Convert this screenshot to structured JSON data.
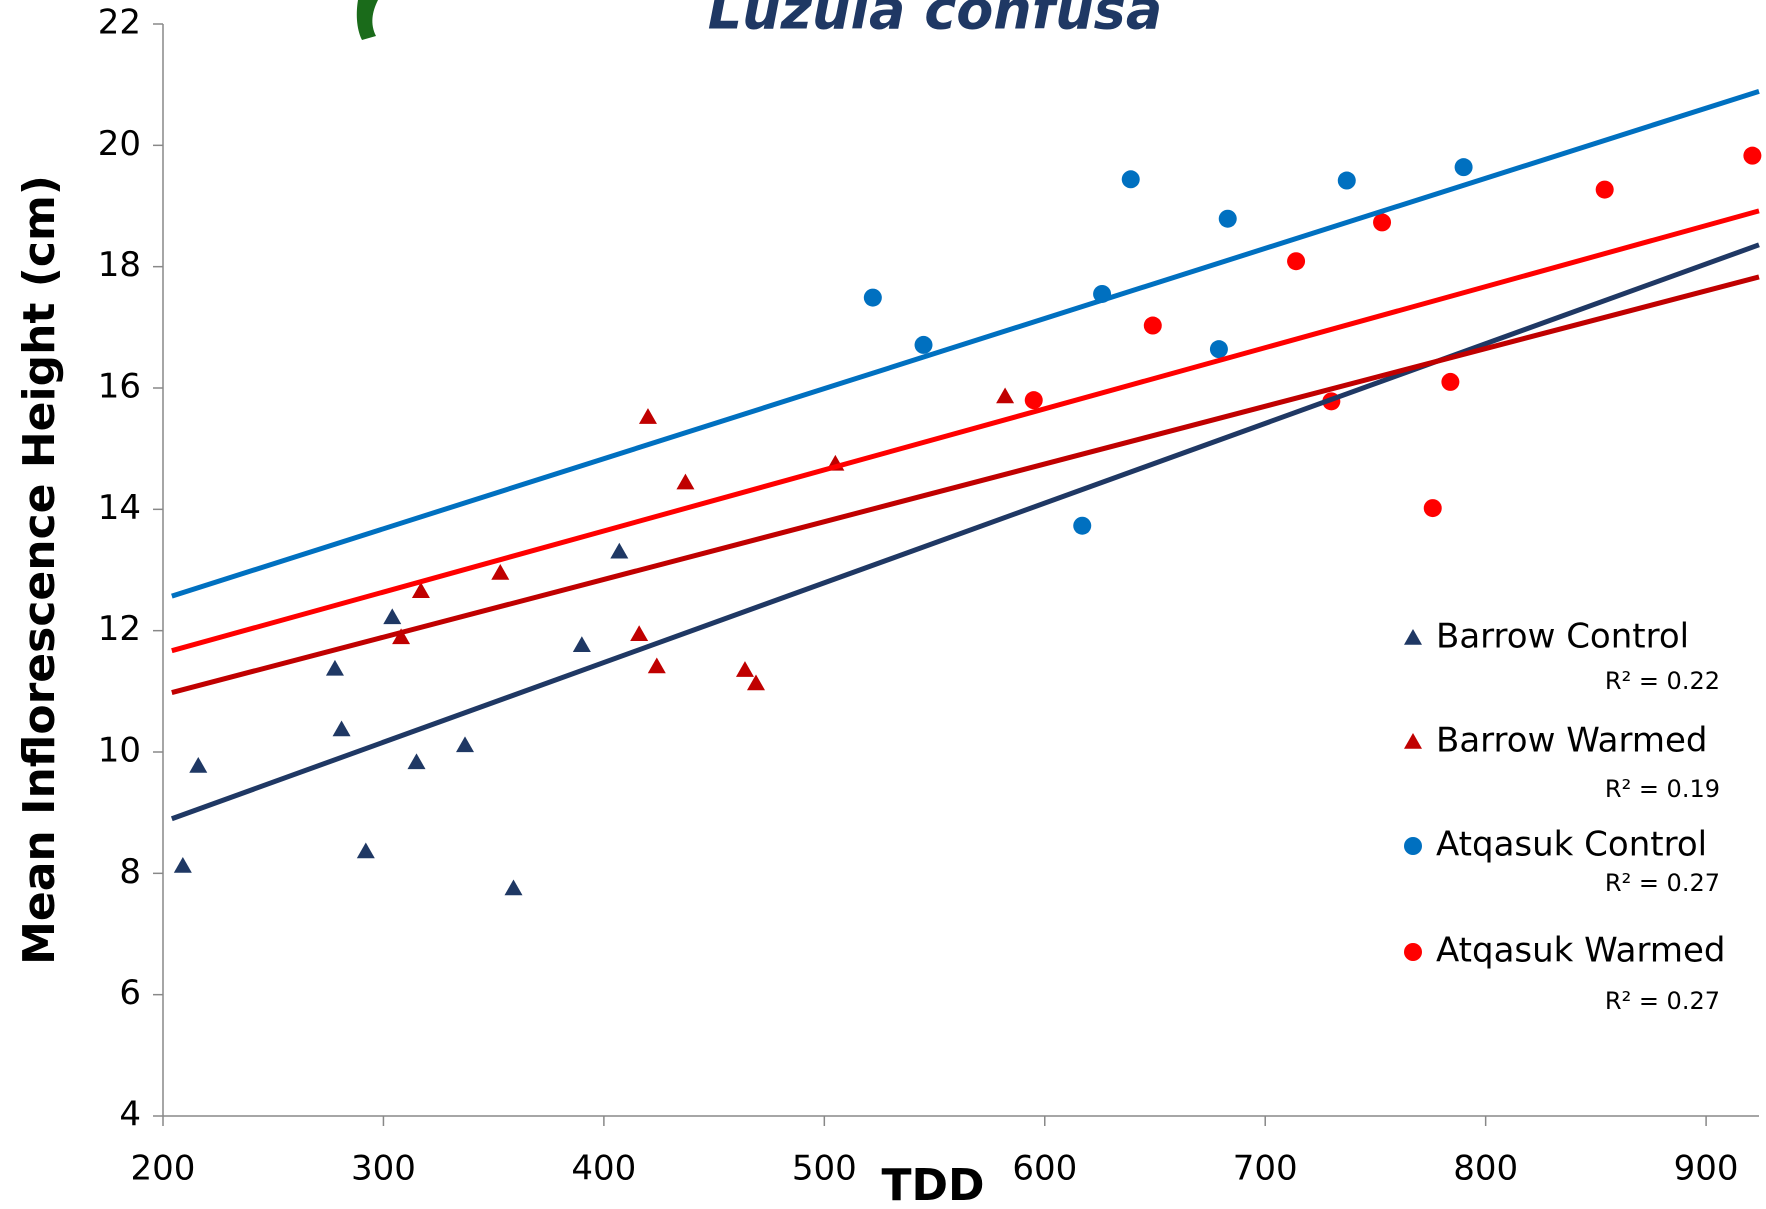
{
  "chart_data": {
    "type": "scatter",
    "title": "Luzula confusa",
    "x_label": "TDD",
    "y_label": "Mean Inflorescence Height (cm)",
    "xlim": [
      200,
      924
    ],
    "xticks": [
      200,
      300,
      400,
      500,
      600,
      700,
      800,
      900
    ],
    "ylim": [
      4,
      22
    ],
    "yticks": [
      4,
      6,
      8,
      10,
      12,
      14,
      16,
      18,
      20,
      22
    ],
    "series": [
      {
        "name": "Barrow Control",
        "color": "#1f3864",
        "marker": "triangle",
        "r2": "R² = 0.22",
        "x": [
          209,
          216,
          278,
          281,
          292,
          304,
          315,
          337,
          359,
          390,
          407
        ],
        "values": [
          8.12,
          9.77,
          11.37,
          10.37,
          8.36,
          12.22,
          9.83,
          10.11,
          7.75,
          11.76,
          13.3
        ],
        "trend": {
          "x": [
            204,
            924
          ],
          "y": [
            8.9,
            18.36
          ]
        }
      },
      {
        "name": "Barrow Warmed",
        "color": "#c00000",
        "marker": "triangle",
        "r2": "R² = 0.19",
        "x": [
          308,
          317,
          353,
          416,
          420,
          424,
          437,
          464,
          469,
          505,
          582
        ],
        "values": [
          11.89,
          12.65,
          12.95,
          11.94,
          15.52,
          11.41,
          14.44,
          11.35,
          11.13,
          14.75,
          15.86
        ],
        "trend": {
          "x": [
            204,
            924
          ],
          "y": [
            10.98,
            17.83
          ]
        }
      },
      {
        "name": "Atqasuk Control",
        "color": "#0070c0",
        "marker": "circle",
        "r2": "R² = 0.27",
        "x": [
          522,
          545,
          617,
          626,
          639,
          679,
          683,
          737,
          790
        ],
        "values": [
          17.49,
          16.71,
          13.73,
          17.55,
          19.44,
          16.64,
          18.79,
          19.42,
          19.64
        ],
        "trend": {
          "x": [
            204,
            924
          ],
          "y": [
            12.57,
            20.89
          ]
        }
      },
      {
        "name": "Atqasuk Warmed",
        "color": "#ff0000",
        "marker": "circle",
        "r2": "R² = 0.27",
        "x": [
          595,
          649,
          714,
          730,
          753,
          776,
          784,
          854,
          921
        ],
        "values": [
          15.8,
          17.03,
          18.09,
          15.78,
          18.73,
          14.02,
          16.1,
          19.27,
          19.83
        ],
        "trend": {
          "x": [
            204,
            924
          ],
          "y": [
            11.67,
            18.92
          ]
        }
      }
    ]
  }
}
